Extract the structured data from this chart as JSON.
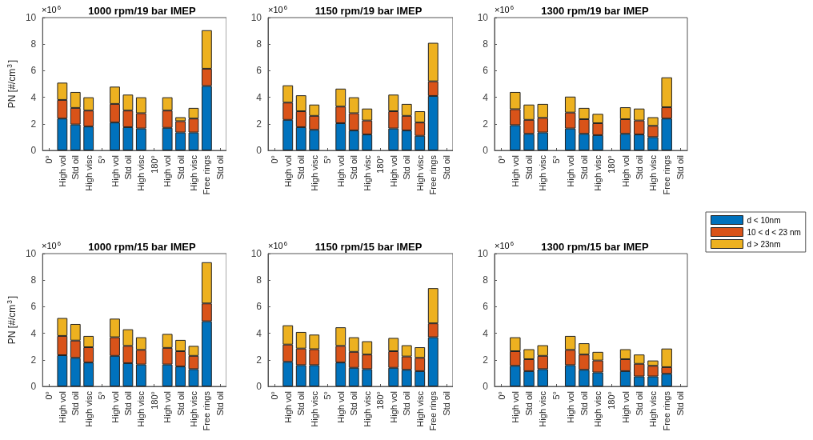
{
  "chart_data": [
    {
      "type": "bar",
      "stacked": true,
      "title": "1000 rpm/19 bar IMEP",
      "ylabel": "PN [#/cm$^{3}$]",
      "annotations": [
        "×10$^{6}$"
      ],
      "categories": [
        "0°",
        "High vol",
        "Std oil",
        "High visc",
        "5°",
        "High vol",
        "Std oil",
        "High visc",
        "180°",
        "High vol",
        "Std oil",
        "High visc",
        "Free rings",
        "Std oil"
      ],
      "ylim": [
        0,
        10
      ],
      "yticks": [
        0,
        2,
        4,
        6,
        8,
        10
      ],
      "series": [
        {
          "color": "#0072bd",
          "values": [
            null,
            2.4,
            1.95,
            1.8,
            null,
            2.1,
            1.75,
            1.65,
            null,
            1.7,
            1.35,
            1.35,
            4.85,
            null
          ]
        },
        {
          "color": "#d95319",
          "values": [
            null,
            1.4,
            1.25,
            1.2,
            null,
            1.4,
            1.25,
            1.15,
            null,
            1.3,
            0.85,
            1.05,
            1.3,
            null
          ]
        },
        {
          "color": "#edb120",
          "values": [
            null,
            1.3,
            1.2,
            1.0,
            null,
            1.3,
            1.2,
            1.2,
            null,
            1.0,
            0.3,
            0.8,
            2.9,
            null
          ]
        }
      ]
    },
    {
      "type": "bar",
      "stacked": true,
      "title": "1150 rpm/19 bar IMEP",
      "annotations": [
        "×10$^{6}$"
      ],
      "categories": [
        "0°",
        "High vol",
        "Std oil",
        "High visc",
        "5°",
        "High vol",
        "Std oil",
        "High visc",
        "180°",
        "High vol",
        "Std oil",
        "High visc",
        "Free rings",
        "Std oil"
      ],
      "ylim": [
        0,
        10
      ],
      "yticks": [
        0,
        2,
        4,
        6,
        8,
        10
      ],
      "series": [
        {
          "color": "#0072bd",
          "values": [
            null,
            2.3,
            1.75,
            1.55,
            null,
            2.05,
            1.5,
            1.2,
            null,
            1.65,
            1.5,
            1.1,
            4.1,
            null
          ]
        },
        {
          "color": "#d95319",
          "values": [
            null,
            1.3,
            1.2,
            1.05,
            null,
            1.25,
            1.3,
            1.05,
            null,
            1.3,
            1.1,
            1.0,
            1.1,
            null
          ]
        },
        {
          "color": "#edb120",
          "values": [
            null,
            1.3,
            1.2,
            0.85,
            null,
            1.35,
            1.2,
            0.9,
            null,
            1.25,
            0.9,
            0.85,
            2.9,
            null
          ]
        }
      ]
    },
    {
      "type": "bar",
      "stacked": true,
      "title": "1300 rpm/19 bar IMEP",
      "annotations": [
        "×10$^{6}$"
      ],
      "categories": [
        "0°",
        "High vol",
        "Std oil",
        "High visc",
        "5°",
        "High vol",
        "Std oil",
        "High visc",
        "180°",
        "High vol",
        "Std oil",
        "High visc",
        "Free rings",
        "Std oil"
      ],
      "ylim": [
        0,
        10
      ],
      "yticks": [
        0,
        2,
        4,
        6,
        8,
        10
      ],
      "series": [
        {
          "color": "#0072bd",
          "values": [
            null,
            1.9,
            1.25,
            1.35,
            null,
            1.65,
            1.25,
            1.15,
            null,
            1.25,
            1.2,
            1.0,
            2.4,
            null
          ]
        },
        {
          "color": "#d95319",
          "values": [
            null,
            1.2,
            1.05,
            1.1,
            null,
            1.2,
            1.1,
            0.9,
            null,
            1.1,
            1.05,
            0.85,
            0.85,
            null
          ]
        },
        {
          "color": "#edb120",
          "values": [
            null,
            1.3,
            1.15,
            1.05,
            null,
            1.2,
            0.85,
            0.7,
            null,
            0.9,
            0.9,
            0.65,
            2.25,
            null
          ]
        }
      ]
    },
    {
      "type": "bar",
      "stacked": true,
      "title": "1000 rpm/15 bar IMEP",
      "ylabel": "PN [#/cm$^{3}$]",
      "annotations": [
        "×10$^{6}$"
      ],
      "categories": [
        "0°",
        "High vol",
        "Std oil",
        "High visc",
        "5°",
        "High vol",
        "Std oil",
        "High visc",
        "180°",
        "High vol",
        "Std oil",
        "High visc",
        "Free rings",
        "Std oil"
      ],
      "ylim": [
        0,
        10
      ],
      "yticks": [
        0,
        2,
        4,
        6,
        8,
        10
      ],
      "series": [
        {
          "color": "#0072bd",
          "values": [
            null,
            2.35,
            2.15,
            1.8,
            null,
            2.3,
            1.75,
            1.65,
            null,
            1.65,
            1.5,
            1.3,
            4.9,
            null
          ]
        },
        {
          "color": "#d95319",
          "values": [
            null,
            1.45,
            1.3,
            1.15,
            null,
            1.4,
            1.3,
            1.1,
            null,
            1.25,
            1.15,
            1.0,
            1.35,
            null
          ]
        },
        {
          "color": "#edb120",
          "values": [
            null,
            1.35,
            1.25,
            0.85,
            null,
            1.4,
            1.25,
            0.95,
            null,
            1.05,
            0.85,
            0.75,
            3.1,
            null
          ]
        }
      ]
    },
    {
      "type": "bar",
      "stacked": true,
      "title": "1150 rpm/15 bar IMEP",
      "annotations": [
        "×10$^{6}$"
      ],
      "categories": [
        "0°",
        "High vol",
        "Std oil",
        "High visc",
        "5°",
        "High vol",
        "Std oil",
        "High visc",
        "180°",
        "High vol",
        "Std oil",
        "High visc",
        "Free rings",
        "Std oil"
      ],
      "ylim": [
        0,
        10
      ],
      "yticks": [
        0,
        2,
        4,
        6,
        8,
        10
      ],
      "series": [
        {
          "color": "#0072bd",
          "values": [
            null,
            1.85,
            1.6,
            1.6,
            null,
            1.8,
            1.4,
            1.3,
            null,
            1.4,
            1.25,
            1.15,
            3.7,
            null
          ]
        },
        {
          "color": "#d95319",
          "values": [
            null,
            1.3,
            1.25,
            1.2,
            null,
            1.25,
            1.2,
            1.1,
            null,
            1.25,
            1.0,
            1.0,
            1.05,
            null
          ]
        },
        {
          "color": "#edb120",
          "values": [
            null,
            1.45,
            1.25,
            1.1,
            null,
            1.4,
            1.1,
            1.0,
            null,
            1.0,
            0.85,
            0.8,
            2.65,
            null
          ]
        }
      ]
    },
    {
      "type": "bar",
      "stacked": true,
      "title": "1300 rpm/15 bar IMEP",
      "annotations": [
        "×10$^{6}$"
      ],
      "legend": "right",
      "categories": [
        "0°",
        "High vol",
        "Std oil",
        "High visc",
        "5°",
        "High vol",
        "Std oil",
        "High visc",
        "180°",
        "High vol",
        "Std oil",
        "High visc",
        "Free rings",
        "Std oil"
      ],
      "ylim": [
        0,
        10
      ],
      "yticks": [
        0,
        2,
        4,
        6,
        8,
        10
      ],
      "series": [
        {
          "name": "d < 10nm",
          "color": "#0072bd",
          "values": [
            null,
            1.55,
            1.15,
            1.3,
            null,
            1.6,
            1.25,
            1.05,
            null,
            1.15,
            0.75,
            0.75,
            0.95,
            null
          ]
        },
        {
          "name": "10 < d < 23 nm",
          "color": "#d95319",
          "values": [
            null,
            1.1,
            0.9,
            1.0,
            null,
            1.15,
            1.15,
            0.9,
            null,
            0.9,
            0.95,
            0.8,
            0.5,
            null
          ]
        },
        {
          "name": "d > 23nm",
          "color": "#edb120",
          "values": [
            null,
            1.05,
            0.75,
            0.8,
            null,
            1.05,
            0.85,
            0.65,
            null,
            0.75,
            0.7,
            0.4,
            1.4,
            null
          ]
        }
      ]
    }
  ]
}
